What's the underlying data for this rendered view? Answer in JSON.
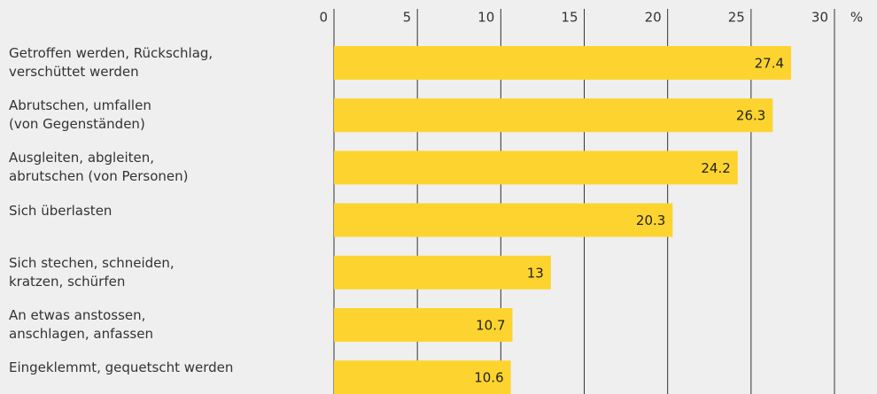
{
  "chart_data": {
    "type": "bar",
    "orientation": "horizontal",
    "categories": [
      "Getroffen werden, Rückschlag,\nverschüttet werden",
      "Abrutschen, umfallen\n(von Gegenständen)",
      "Ausgleiten, abgleiten,\nabrutschen (von Personen)",
      "Sich überlasten",
      "Sich stechen, schneiden,\nkratzen, schürfen",
      "An etwas anstossen,\nanschlagen, anfassen",
      "Eingeklemmt, gequetscht werden"
    ],
    "values": [
      27.4,
      26.3,
      24.2,
      20.3,
      13,
      10.7,
      10.6
    ],
    "color": "#fdd42f",
    "xlim": [
      0,
      30
    ],
    "xticks": [
      0,
      5,
      10,
      15,
      20,
      25,
      30
    ],
    "unit": "%",
    "grid": true
  }
}
